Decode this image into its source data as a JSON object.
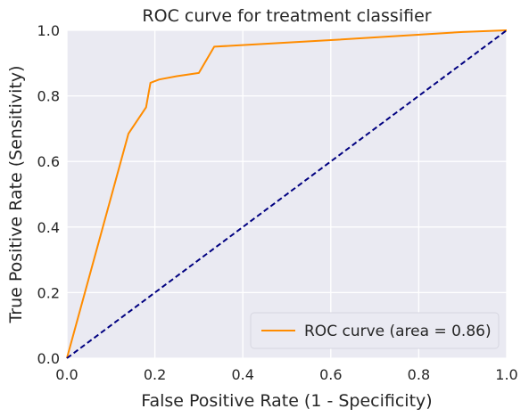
{
  "chart_data": {
    "type": "line",
    "title": "ROC curve for treatment classifier",
    "xlabel": "False Positive Rate (1 - Specificity)",
    "ylabel": "True Positive Rate (Sensitivity)",
    "xlim": [
      0.0,
      1.0
    ],
    "ylim": [
      0.0,
      1.0
    ],
    "xticks": [
      "0.0",
      "0.2",
      "0.4",
      "0.6",
      "0.8",
      "1.0"
    ],
    "yticks": [
      "0.0",
      "0.2",
      "0.4",
      "0.6",
      "0.8",
      "1.0"
    ],
    "grid": true,
    "legend_position": "lower-right",
    "series": [
      {
        "name": "ROC curve (area = 0.86)",
        "color": "#ff8c00",
        "style": "solid",
        "x": [
          0.0,
          0.14,
          0.18,
          0.19,
          0.21,
          0.25,
          0.3,
          0.335,
          0.6,
          0.9,
          1.0
        ],
        "y": [
          0.0,
          0.685,
          0.765,
          0.84,
          0.85,
          0.86,
          0.87,
          0.95,
          0.97,
          0.995,
          1.0
        ]
      },
      {
        "color": "#000080",
        "style": "dashed",
        "x": [
          0.0,
          1.0
        ],
        "y": [
          0.0,
          1.0
        ]
      }
    ]
  }
}
